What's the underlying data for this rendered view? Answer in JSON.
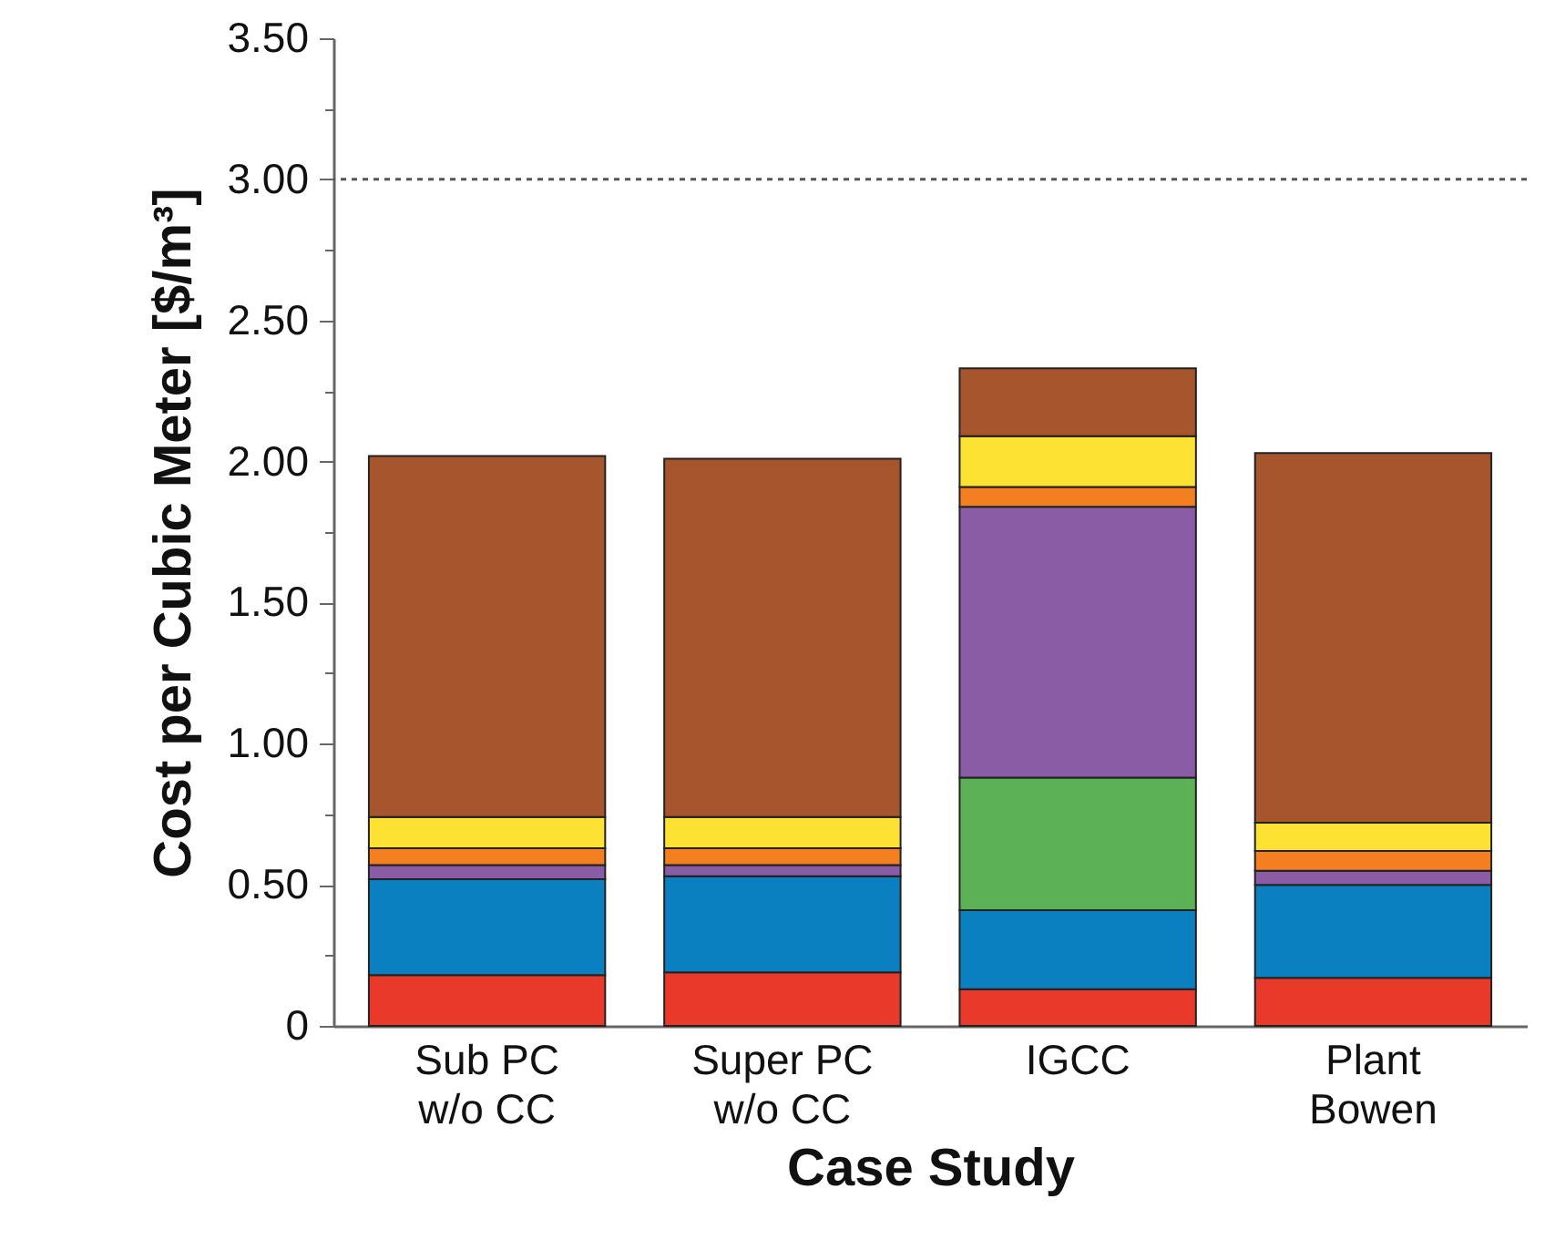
{
  "chart_data": {
    "type": "bar",
    "stacked": true,
    "xlabel": "Case Study",
    "ylabel": "Cost per Cubic Meter [$/m³]",
    "categories": [
      "Sub PC\nw/o CC",
      "Super PC\nw/o CC",
      "IGCC",
      "Plant\nBowen"
    ],
    "series": [
      {
        "color": "#e8392a",
        "values": [
          0.18,
          0.19,
          0.13,
          0.17
        ]
      },
      {
        "color": "#0b80c0",
        "values": [
          0.34,
          0.34,
          0.28,
          0.33
        ]
      },
      {
        "color": "#5cb056",
        "values": [
          null,
          null,
          0.47,
          null
        ]
      },
      {
        "color": "#8a5ca6",
        "values": [
          0.05,
          0.04,
          0.96,
          0.05
        ]
      },
      {
        "color": "#f47f20",
        "values": [
          0.06,
          0.06,
          0.07,
          0.07
        ]
      },
      {
        "color": "#fde234",
        "values": [
          0.11,
          0.11,
          0.18,
          0.1
        ]
      },
      {
        "color": "#a6552d",
        "values": [
          1.28,
          1.27,
          0.24,
          1.31
        ]
      }
    ],
    "ylim": [
      0,
      3.5
    ],
    "yticks": [
      {
        "value": 0,
        "label": "0"
      },
      {
        "value": 0.25,
        "label": null
      },
      {
        "value": 0.5,
        "label": "0.50"
      },
      {
        "value": 0.75,
        "label": null
      },
      {
        "value": 1,
        "label": "1.00"
      },
      {
        "value": 1.25,
        "label": null
      },
      {
        "value": 1.5,
        "label": "1.50"
      },
      {
        "value": 1.75,
        "label": null
      },
      {
        "value": 2,
        "label": "2.00"
      },
      {
        "value": 2.25,
        "label": null
      },
      {
        "value": 2.5,
        "label": "2.50"
      },
      {
        "value": 2.75,
        "label": null
      },
      {
        "value": 3,
        "label": "3.00"
      },
      {
        "value": 3.25,
        "label": null
      },
      {
        "value": 3.5,
        "label": "3.50"
      }
    ],
    "ref_lines": [
      {
        "axis": "y",
        "value": 3,
        "color": "#555555",
        "line_style": "dotted"
      }
    ],
    "grid": false
  }
}
